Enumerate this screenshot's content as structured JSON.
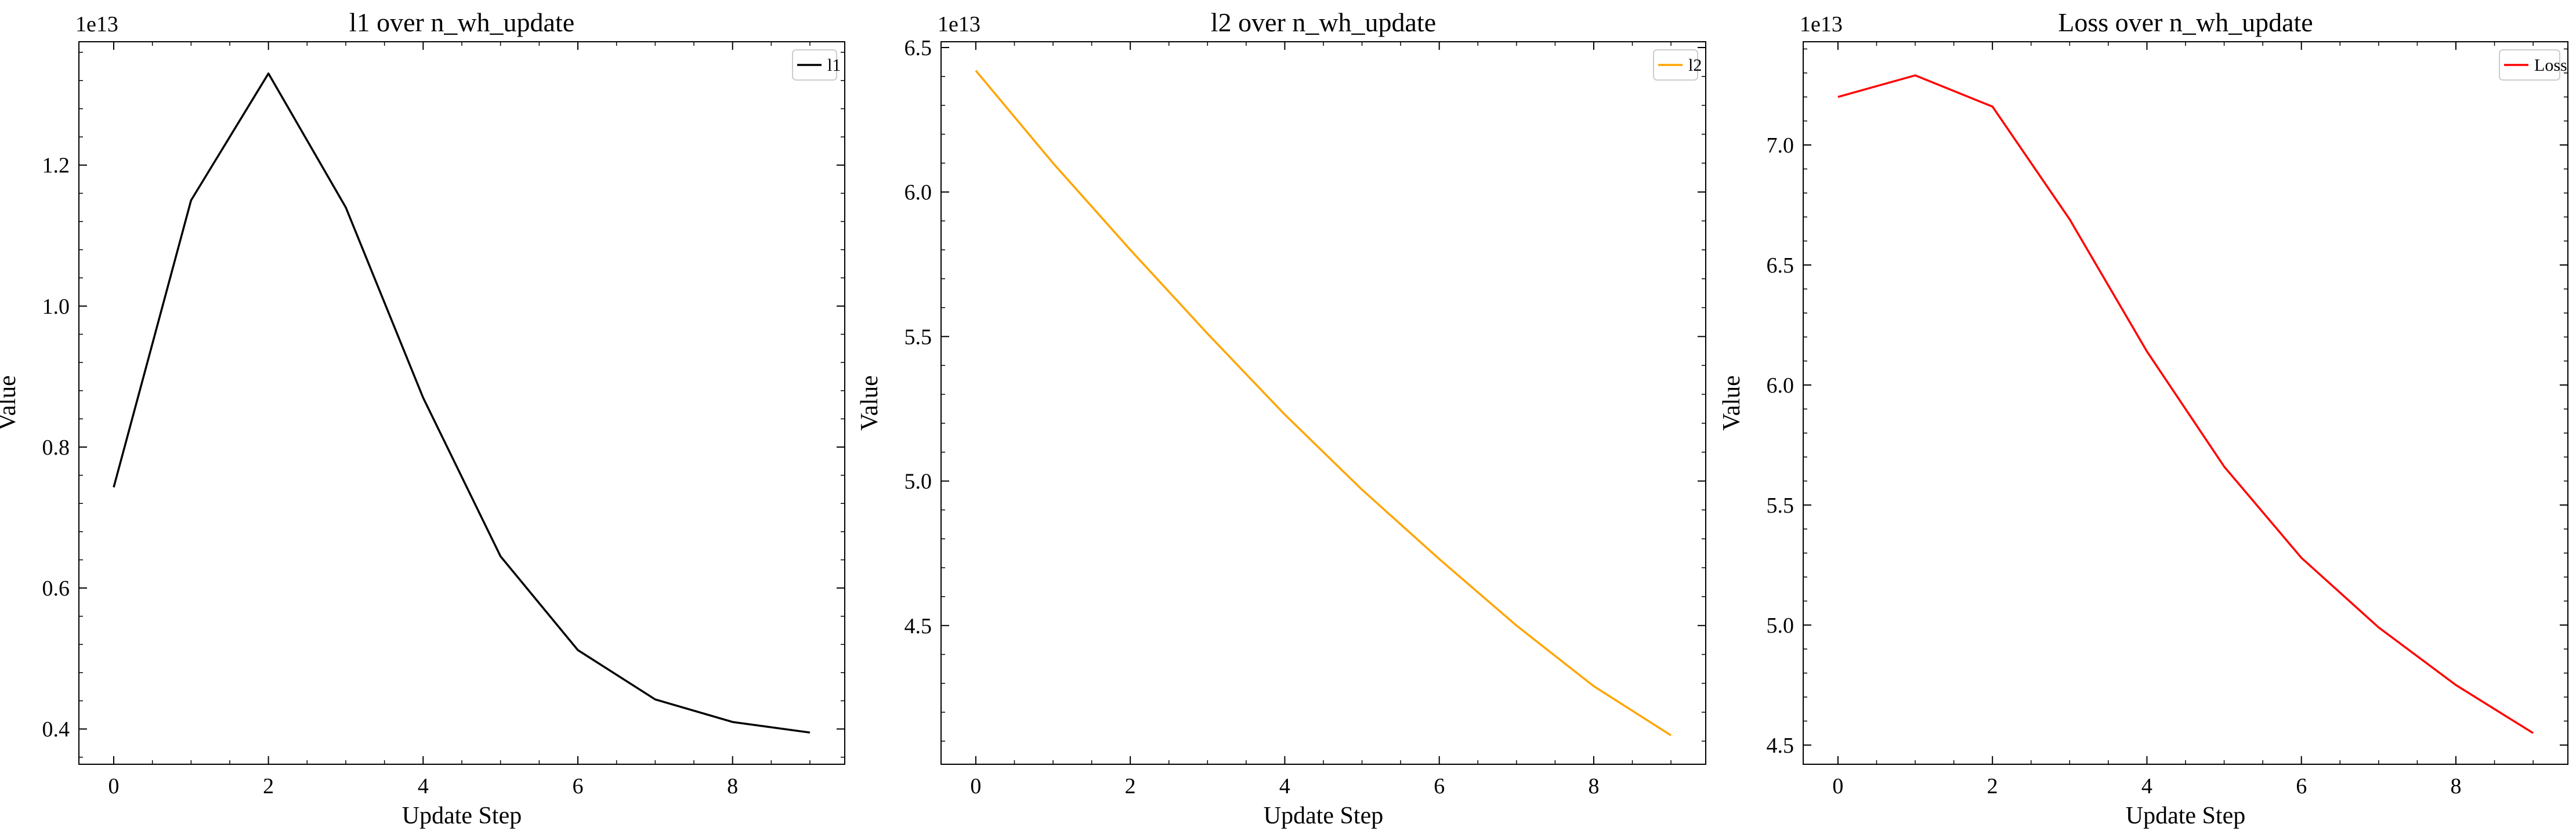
{
  "chart_data": [
    {
      "type": "line",
      "title": "l1 over n_wh_update",
      "xlabel": "Update Step",
      "ylabel": "Value",
      "y_offset_label": "1e13",
      "x": [
        0,
        1,
        2,
        3,
        4,
        5,
        6,
        7,
        8,
        9
      ],
      "series": [
        {
          "name": "l1",
          "color": "#000000",
          "values": [
            7430000000000.0,
            11500000000000.0,
            13300000000000.0,
            11400000000000.0,
            8700000000000.0,
            6450000000000.0,
            5120000000000.0,
            4420000000000.0,
            4100000000000.0,
            3950000000000.0
          ]
        }
      ],
      "xlim": [
        -0.45,
        9.45
      ],
      "ylim": [
        3500000000000.0,
        13750000000000.0
      ],
      "xticks": [
        0,
        2,
        4,
        6,
        8
      ],
      "yticks": [
        4000000000000.0,
        6000000000000.0,
        8000000000000.0,
        10000000000000.0,
        12000000000000.0
      ],
      "ytick_labels": [
        "0.4",
        "0.6",
        "0.8",
        "1.0",
        "1.2"
      ],
      "legend": "top-right",
      "grid": false
    },
    {
      "type": "line",
      "title": "l2 over n_wh_update",
      "xlabel": "Update Step",
      "ylabel": "Value",
      "y_offset_label": "1e13",
      "x": [
        0,
        1,
        2,
        3,
        4,
        5,
        6,
        7,
        8,
        9
      ],
      "series": [
        {
          "name": "l2",
          "color": "#ffa500",
          "values": [
            64200000000000.0,
            61000000000000.0,
            58000000000000.0,
            55100000000000.0,
            52300000000000.0,
            49700000000000.0,
            47300000000000.0,
            45000000000000.0,
            42900000000000.0,
            41200000000000.0
          ]
        }
      ],
      "xlim": [
        -0.45,
        9.45
      ],
      "ylim": [
        40200000000000.0,
        65200000000000.0
      ],
      "xticks": [
        0,
        2,
        4,
        6,
        8
      ],
      "yticks": [
        45000000000000.0,
        50000000000000.0,
        55000000000000.0,
        60000000000000.0,
        65000000000000.0
      ],
      "ytick_labels": [
        "4.5",
        "5.0",
        "5.5",
        "6.0",
        "6.5"
      ],
      "legend": "top-right",
      "grid": false
    },
    {
      "type": "line",
      "title": "Loss over n_wh_update",
      "xlabel": "Update Step",
      "ylabel": "Value",
      "y_offset_label": "1e13",
      "x": [
        0,
        1,
        2,
        3,
        4,
        5,
        6,
        7,
        8,
        9
      ],
      "series": [
        {
          "name": "Loss",
          "color": "#ff0000",
          "values": [
            72000000000000.0,
            72900000000000.0,
            71600000000000.0,
            66900000000000.0,
            61400000000000.0,
            56600000000000.0,
            52800000000000.0,
            49900000000000.0,
            47500000000000.0,
            45500000000000.0
          ]
        }
      ],
      "xlim": [
        -0.45,
        9.45
      ],
      "ylim": [
        44200000000000.0,
        74300000000000.0
      ],
      "xticks": [
        0,
        2,
        4,
        6,
        8
      ],
      "yticks": [
        45000000000000.0,
        50000000000000.0,
        55000000000000.0,
        60000000000000.0,
        65000000000000.0,
        70000000000000.0
      ],
      "ytick_labels": [
        "4.5",
        "5.0",
        "5.5",
        "6.0",
        "6.5",
        "7.0"
      ],
      "legend": "top-right",
      "grid": false
    }
  ]
}
